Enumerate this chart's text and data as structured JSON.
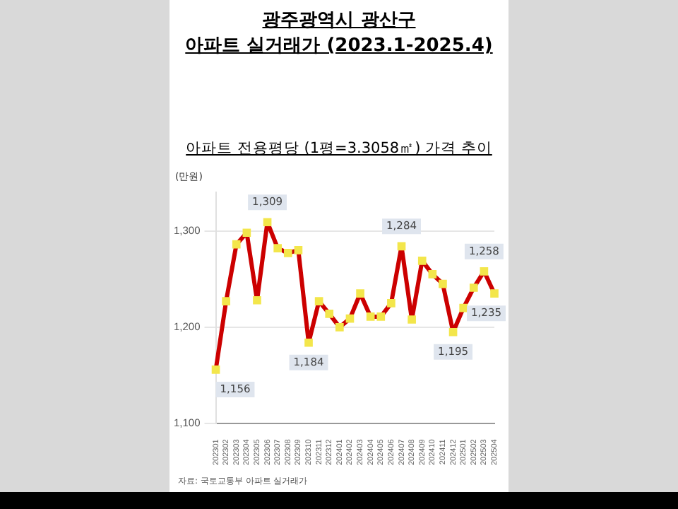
{
  "chart_data": {
    "type": "line",
    "title": "광주광역시 광산구\n아파트 실거래가 (2023.1-2025.4)",
    "subtitle": "아파트 전용평당 (1평=3.3058㎡) 가격 추이",
    "ylabel": "(만원)",
    "annotations": [
      "자료: 국토교통부 아파트 실거래가"
    ],
    "categories": [
      "202301",
      "202302",
      "202303",
      "202304",
      "202305",
      "202306",
      "202307",
      "202308",
      "202309",
      "202310",
      "202311",
      "202312",
      "202401",
      "202402",
      "202403",
      "202404",
      "202405",
      "202406",
      "202407",
      "202408",
      "202409",
      "202410",
      "202411",
      "202412",
      "202501",
      "202502",
      "202503",
      "202504"
    ],
    "series": [
      {
        "color": "#cc0000",
        "values": [
          1156,
          1227,
          1286,
          1298,
          1228,
          1309,
          1282,
          1277,
          1280,
          1184,
          1227,
          1214,
          1200,
          1209,
          1235,
          1211,
          1211,
          1225,
          1284,
          1208,
          1269,
          1255,
          1245,
          1195,
          1220,
          1241,
          1258,
          1235
        ],
        "value_labels": [
          "1,156",
          null,
          null,
          null,
          null,
          "1,309",
          null,
          null,
          null,
          "1,184",
          null,
          null,
          null,
          null,
          null,
          null,
          null,
          null,
          "1,284",
          null,
          null,
          null,
          null,
          "1,195",
          null,
          null,
          "1,258",
          "1,235"
        ]
      }
    ],
    "ylim": [
      1100,
      1340
    ],
    "yticks": [
      {
        "value": 1100,
        "label": "1,100"
      },
      {
        "value": 1200,
        "label": "1,200"
      },
      {
        "value": 1300,
        "label": "1,300"
      }
    ],
    "grid": "y",
    "legend": false,
    "marker": "square",
    "line_style": "solid"
  }
}
